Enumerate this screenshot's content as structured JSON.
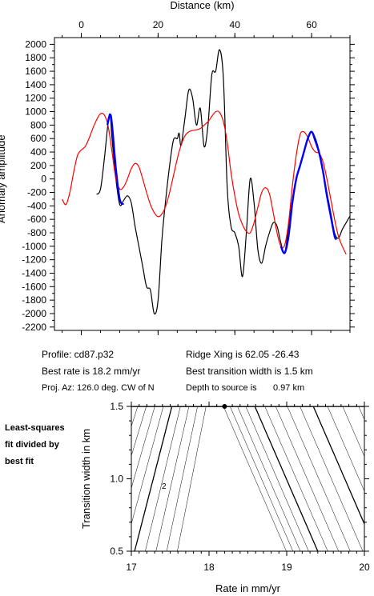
{
  "info": {
    "profile": "Profile: cd87.p32",
    "ridge": "Ridge Xing is 62.05 -26.43",
    "best_rate": "Best rate is 18.2 mm/yr",
    "best_width": "Best transition width is 1.5 km",
    "proj_az": "Proj. Az: 126.0 deg. CW of N",
    "depth": "Depth to source is",
    "depth_value": "0.97 km"
  },
  "note": {
    "line1": "Least-squares",
    "line2": "fit divided by",
    "line3": "best fit"
  },
  "chart_data": [
    {
      "type": "line",
      "xlabel": "Distance (km)",
      "ylabel": "Anomaly amplitude",
      "xlim": [
        -7,
        70
      ],
      "ylim": [
        -2250,
        2100
      ],
      "x_ticks": [
        0,
        20,
        40,
        60
      ],
      "y_ticks": [
        2000,
        1800,
        1600,
        1400,
        1200,
        1000,
        800,
        600,
        400,
        200,
        0,
        -200,
        -400,
        -600,
        -800,
        -1000,
        -1200,
        -1400,
        -1600,
        -1800,
        -2000,
        -2200
      ],
      "x_axis_position": "top",
      "series": [
        {
          "color": "#000000",
          "points": [
            [
              4,
              -230
            ],
            [
              5,
              -150
            ],
            [
              6,
              300
            ],
            [
              7,
              850
            ],
            [
              7.5,
              950
            ],
            [
              8,
              600
            ],
            [
              9,
              0
            ],
            [
              10,
              -380
            ],
            [
              11,
              -320
            ],
            [
              12,
              -250
            ],
            [
              13,
              -350
            ],
            [
              14,
              -700
            ],
            [
              15,
              -1000
            ],
            [
              16,
              -1300
            ],
            [
              17,
              -1600
            ],
            [
              18,
              -1650
            ],
            [
              19,
              -2000
            ],
            [
              20,
              -1800
            ],
            [
              21,
              -900
            ],
            [
              22,
              -300
            ],
            [
              23,
              200
            ],
            [
              24,
              580
            ],
            [
              25,
              600
            ],
            [
              25.5,
              680
            ],
            [
              26,
              500
            ],
            [
              27,
              900
            ],
            [
              28,
              1320
            ],
            [
              29,
              1200
            ],
            [
              30,
              800
            ],
            [
              31,
              1050
            ],
            [
              32,
              480
            ],
            [
              33,
              800
            ],
            [
              34,
              1550
            ],
            [
              35,
              1600
            ],
            [
              36,
              1920
            ],
            [
              37,
              1500
            ],
            [
              38,
              -100
            ],
            [
              39,
              -700
            ],
            [
              40,
              -800
            ],
            [
              41,
              -1000
            ],
            [
              42,
              -1450
            ],
            [
              43,
              -800
            ],
            [
              44,
              0
            ],
            [
              45,
              -350
            ],
            [
              46,
              -1050
            ],
            [
              47,
              -1250
            ],
            [
              48,
              -1000
            ],
            [
              49,
              -800
            ],
            [
              50,
              -650
            ],
            [
              51,
              -700
            ],
            [
              52,
              -950
            ],
            [
              53,
              -1100
            ],
            [
              54,
              -700
            ],
            [
              55,
              -300
            ],
            [
              56,
              0
            ],
            [
              57,
              180
            ],
            [
              58,
              400
            ],
            [
              59,
              580
            ],
            [
              60,
              700
            ],
            [
              61,
              600
            ],
            [
              62,
              400
            ],
            [
              63,
              100
            ],
            [
              64,
              -200
            ],
            [
              65,
              -500
            ],
            [
              66,
              -800
            ],
            [
              67,
              -880
            ],
            [
              68,
              -750
            ],
            [
              69,
              -650
            ],
            [
              70,
              -550
            ]
          ]
        },
        {
          "color": "#ff0000",
          "points": [
            [
              -5,
              -300
            ],
            [
              -4,
              -380
            ],
            [
              -3,
              -200
            ],
            [
              -2,
              100
            ],
            [
              -1,
              350
            ],
            [
              0,
              430
            ],
            [
              1,
              480
            ],
            [
              2,
              600
            ],
            [
              3,
              750
            ],
            [
              4,
              880
            ],
            [
              5,
              970
            ],
            [
              6,
              950
            ],
            [
              7,
              780
            ],
            [
              8,
              400
            ],
            [
              9,
              0
            ],
            [
              10,
              -150
            ],
            [
              11,
              -120
            ],
            [
              12,
              0
            ],
            [
              13,
              150
            ],
            [
              14,
              230
            ],
            [
              15,
              180
            ],
            [
              16,
              0
            ],
            [
              17,
              -200
            ],
            [
              18,
              -380
            ],
            [
              19,
              -500
            ],
            [
              20,
              -560
            ],
            [
              21,
              -520
            ],
            [
              22,
              -400
            ],
            [
              23,
              -200
            ],
            [
              24,
              50
            ],
            [
              25,
              300
            ],
            [
              26,
              500
            ],
            [
              27,
              640
            ],
            [
              28,
              700
            ],
            [
              29,
              720
            ],
            [
              30,
              730
            ],
            [
              31,
              750
            ],
            [
              32,
              800
            ],
            [
              33,
              850
            ],
            [
              34,
              930
            ],
            [
              35,
              1000
            ],
            [
              36,
              990
            ],
            [
              37,
              850
            ],
            [
              38,
              550
            ],
            [
              39,
              100
            ],
            [
              40,
              -250
            ],
            [
              41,
              -520
            ],
            [
              42,
              -680
            ],
            [
              43,
              -780
            ],
            [
              44,
              -800
            ],
            [
              45,
              -650
            ],
            [
              46,
              -420
            ],
            [
              47,
              -200
            ],
            [
              48,
              -130
            ],
            [
              49,
              -220
            ],
            [
              50,
              -500
            ],
            [
              51,
              -800
            ],
            [
              52,
              -1000
            ],
            [
              53,
              -980
            ],
            [
              54,
              -650
            ],
            [
              55,
              -100
            ],
            [
              56,
              350
            ],
            [
              57,
              660
            ],
            [
              58,
              700
            ],
            [
              59,
              620
            ],
            [
              60,
              480
            ],
            [
              61,
              400
            ],
            [
              62,
              380
            ],
            [
              63,
              250
            ],
            [
              64,
              0
            ],
            [
              65,
              -300
            ],
            [
              66,
              -600
            ],
            [
              67,
              -850
            ],
            [
              68,
              -1000
            ],
            [
              69,
              -1120
            ]
          ]
        },
        {
          "color": "#0000ff",
          "segments": [
            [
              [
                6.8,
                800
              ],
              [
                7.5,
                960
              ],
              [
                8,
                800
              ],
              [
                9,
                150
              ],
              [
                10,
                -300
              ],
              [
                11,
                -380
              ]
            ],
            [
              [
                52,
                -1000
              ],
              [
                53,
                -1100
              ],
              [
                54,
                -850
              ],
              [
                55,
                -350
              ],
              [
                56,
                0
              ],
              [
                57,
                200
              ],
              [
                58,
                400
              ],
              [
                59,
                600
              ],
              [
                60,
                700
              ],
              [
                61,
                560
              ],
              [
                62,
                380
              ],
              [
                63,
                100
              ],
              [
                64,
                -250
              ],
              [
                65,
                -550
              ],
              [
                66,
                -850
              ],
              [
                66.5,
                -900
              ]
            ]
          ]
        }
      ]
    },
    {
      "type": "contour",
      "xlabel": "Rate in mm/yr",
      "ylabel": "Transition width in km",
      "xlim": [
        17,
        20
      ],
      "ylim": [
        0.5,
        1.5
      ],
      "x_ticks": [
        17,
        18,
        19,
        20
      ],
      "y_ticks": [
        0.5,
        1.0,
        1.5
      ],
      "contour_label": "2",
      "best_fit_point": [
        18.2,
        1.5
      ]
    }
  ]
}
